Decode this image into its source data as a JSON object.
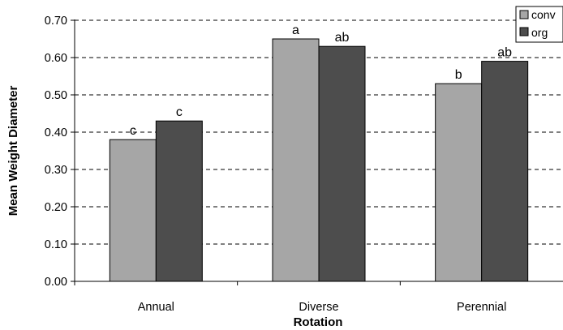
{
  "chart_data": {
    "type": "bar",
    "title": "",
    "xlabel": "Rotation",
    "ylabel": "Mean Weight Diameter",
    "ylim": [
      0,
      0.7
    ],
    "yticks": [
      "0.00",
      "0.10",
      "0.20",
      "0.30",
      "0.40",
      "0.50",
      "0.60",
      "0.70"
    ],
    "ytick_values": [
      0,
      0.1,
      0.2,
      0.3,
      0.4,
      0.5,
      0.6,
      0.7
    ],
    "categories": [
      "Annual",
      "Diverse",
      "Perennial"
    ],
    "series": [
      {
        "name": "conv",
        "color": "#a6a6a6",
        "values": [
          0.38,
          0.65,
          0.53
        ],
        "labels": [
          "c",
          "a",
          "b"
        ]
      },
      {
        "name": "org",
        "color": "#4d4d4d",
        "values": [
          0.43,
          0.63,
          0.59
        ],
        "labels": [
          "c",
          "ab",
          "ab"
        ]
      }
    ],
    "grid": "horizontal-dashed",
    "legend": "top-right"
  }
}
